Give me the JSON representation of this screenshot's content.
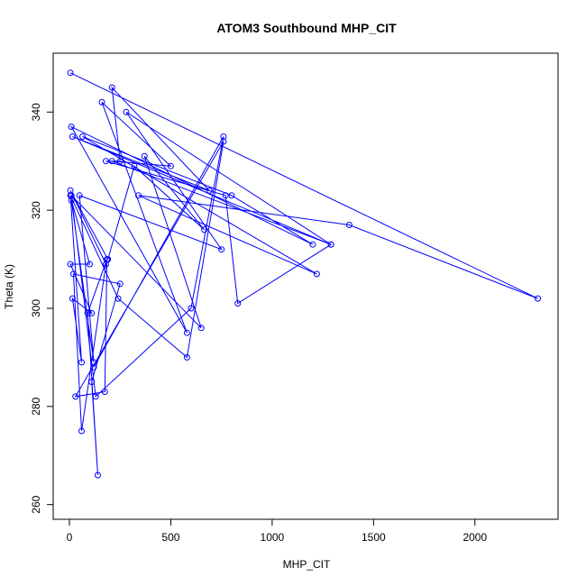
{
  "chart_data": {
    "type": "scatter",
    "title": "ATOM3 Southbound MHP_CIT",
    "xlabel": "MHP_CIT",
    "ylabel": "Theta (K)",
    "xlim": [
      -80,
      2410
    ],
    "ylim": [
      257,
      352
    ],
    "xticks": [
      0,
      500,
      1000,
      1500,
      2000
    ],
    "yticks": [
      260,
      280,
      300,
      320,
      340
    ],
    "grid": false,
    "legend": "none",
    "connected": true,
    "color": "#0000ff",
    "series": [
      {
        "x": [
          5,
          2310,
          1380,
          340,
          1220,
          65,
          800,
          1200,
          10,
          580,
          160,
          500,
          210,
          1290,
          15,
          690,
          210,
          250,
          180,
          770,
          830,
          1290,
          280,
          750,
          50,
          120,
          10,
          100,
          5,
          110,
          15,
          60,
          5,
          240,
          580,
          760,
          30,
          175,
          185,
          90,
          140,
          110,
          250,
          20,
          60,
          180,
          5,
          190,
          320,
          665,
          370,
          650,
          10,
          130,
          600,
          760,
          120
        ],
        "y": [
          348,
          302,
          317,
          323,
          307,
          335,
          323,
          313,
          337,
          295,
          342,
          329,
          330,
          313,
          335,
          324,
          345,
          330,
          330,
          323,
          301,
          313,
          340,
          312,
          323,
          289,
          322,
          309,
          309,
          299,
          302,
          289,
          323,
          302,
          290,
          334,
          282,
          283,
          310,
          299,
          266,
          285,
          305,
          307,
          275,
          309,
          324,
          310,
          329,
          316,
          331,
          296,
          323,
          282,
          300,
          335,
          288
        ]
      }
    ]
  }
}
